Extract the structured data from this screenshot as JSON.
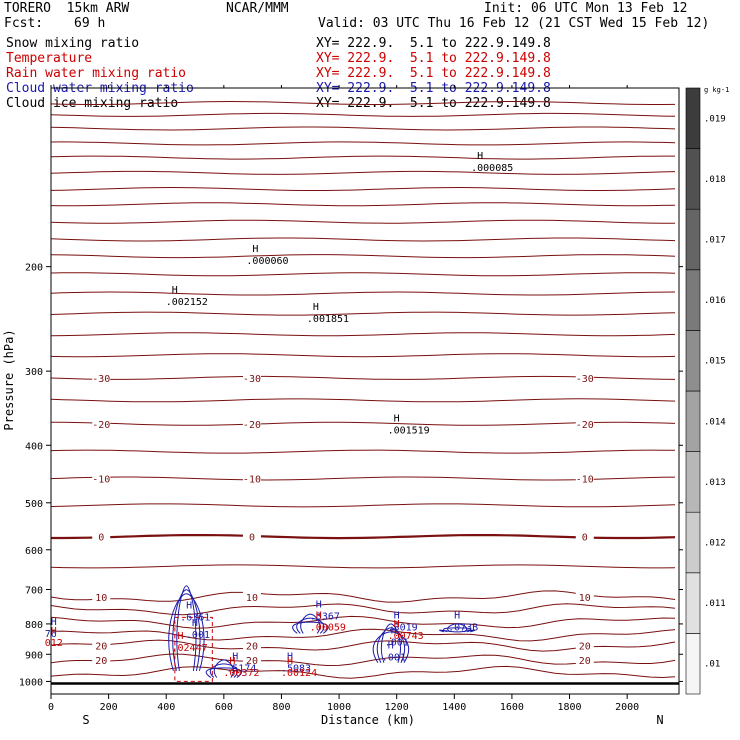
{
  "header": {
    "model": "TORERO  15km ARW",
    "org": "NCAR/MMM",
    "init": "Init: 06 UTC Mon 13 Feb 12",
    "fcst_label": "Fcst:",
    "fcst_value": "69 h",
    "valid": "Valid: 03 UTC Thu 16 Feb 12 (21 CST Wed 15 Feb 12)"
  },
  "legend": [
    {
      "name": "Snow mixing ratio",
      "xy": "",
      "color": "#000000"
    },
    {
      "name": "Temperature",
      "xy": "XY= 222.9.  5.1 to 222.9.149.8",
      "color": "#cc0000"
    },
    {
      "name": "Rain water mixing ratio",
      "xy": "XY= 222.9.  5.1 to 222.9.149.8",
      "color": "#cc0000"
    },
    {
      "name": "Cloud water mixing ratio",
      "xy": "XY= 222.9.  5.1 to 222.9.149.8",
      "color": "#1a1aaa"
    },
    {
      "name": "Cloud ice mixing ratio",
      "xy": "XY= 222.9.  5.1 to 222.9.149.8",
      "color": "#000000"
    }
  ],
  "legend_top_xy": "XY= 222.9.  5.1 to 222.9.149.8",
  "colors": {
    "temperature": "#7a1010",
    "rain": "#cc0000",
    "cloud_water": "#1a1aaa",
    "black": "#000000"
  },
  "chart_data": {
    "type": "contour",
    "xlabel": "Distance (km)",
    "ylabel": "Pressure (hPa)",
    "x_ticks": [
      0,
      200,
      400,
      600,
      800,
      1000,
      1200,
      1400,
      1600,
      1800,
      2000
    ],
    "y_ticks": [
      200,
      300,
      400,
      500,
      600,
      700,
      800,
      900,
      1000
    ],
    "xlim": [
      0,
      2180
    ],
    "ylim": [
      1050,
      100
    ],
    "y_scale": "log",
    "x_end_labels": {
      "left": "S",
      "right": "N"
    },
    "colorbar": {
      "units": "g kg-1",
      "ticks": [
        ".01",
        ".011",
        ".012",
        ".013",
        ".014",
        ".015",
        ".016",
        ".017",
        ".018",
        ".019"
      ]
    },
    "temperature_contours": [
      {
        "p": 965,
        "label": ""
      },
      {
        "p": 920,
        "label": "20"
      },
      {
        "p": 870,
        "label": "20"
      },
      {
        "p": 835,
        "label": ""
      },
      {
        "p": 795,
        "label": ""
      },
      {
        "p": 755,
        "label": ""
      },
      {
        "p": 720,
        "label": "10"
      },
      {
        "p": 640,
        "label": ""
      },
      {
        "p": 570,
        "label": "0"
      },
      {
        "p": 505,
        "label": ""
      },
      {
        "p": 455,
        "label": "-10"
      },
      {
        "p": 410,
        "label": ""
      },
      {
        "p": 368,
        "label": "-20"
      },
      {
        "p": 336,
        "label": ""
      },
      {
        "p": 308,
        "label": "-30"
      },
      {
        "p": 282,
        "label": ""
      },
      {
        "p": 260,
        "label": ""
      },
      {
        "p": 240,
        "label": ""
      },
      {
        "p": 222,
        "label": ""
      },
      {
        "p": 206,
        "label": ""
      },
      {
        "p": 192,
        "label": ""
      },
      {
        "p": 180,
        "label": ""
      },
      {
        "p": 168,
        "label": ""
      },
      {
        "p": 157,
        "label": ""
      },
      {
        "p": 148,
        "label": ""
      },
      {
        "p": 139,
        "label": ""
      },
      {
        "p": 131,
        "label": ""
      },
      {
        "p": 124,
        "label": ""
      },
      {
        "p": 117,
        "label": ""
      },
      {
        "p": 111,
        "label": ""
      },
      {
        "p": 106,
        "label": ""
      }
    ],
    "extrema": [
      {
        "x": 1500,
        "p": 138,
        "text": ".000085",
        "color": "#000000"
      },
      {
        "x": 720,
        "p": 198,
        "text": ".000060",
        "color": "#000000"
      },
      {
        "x": 440,
        "p": 232,
        "text": ".002152",
        "color": "#000000"
      },
      {
        "x": 930,
        "p": 248,
        "text": ".001851",
        "color": "#000000"
      },
      {
        "x": 1210,
        "p": 382,
        "text": ".001519",
        "color": "#000000"
      },
      {
        "x": 1210,
        "p": 820,
        "text": ".3019",
        "color": "#1a1aaa"
      },
      {
        "x": 1420,
        "p": 820,
        "text": ".073B",
        "color": "#1a1aaa"
      },
      {
        "x": 940,
        "p": 786,
        "text": ".3367",
        "color": "#1a1aaa"
      },
      {
        "x": 940,
        "p": 820,
        "text": ".00059",
        "color": "#cc0000"
      },
      {
        "x": 1210,
        "p": 848,
        "text": ".00743",
        "color": "#cc0000"
      },
      {
        "x": 490,
        "p": 790,
        "text": ".6361",
        "color": "#1a1aaa"
      },
      {
        "x": 510,
        "p": 845,
        "text": ".001",
        "color": "#1a1aaa"
      },
      {
        "x": 1200,
        "p": 870,
        "text": ".001",
        "color": "#1a1aaa"
      },
      {
        "x": 1190,
        "p": 922,
        "text": ".001",
        "color": "#1a1aaa"
      },
      {
        "x": 460,
        "p": 888,
        "text": ".02447",
        "color": "#cc0000"
      },
      {
        "x": 650,
        "p": 962,
        "text": ".5174",
        "color": "#1a1aaa"
      },
      {
        "x": 840,
        "p": 962,
        "text": ".5083",
        "color": "#1a1aaa"
      },
      {
        "x": 640,
        "p": 980,
        "text": ".00372",
        "color": "#cc0000"
      },
      {
        "x": 840,
        "p": 980,
        "text": ".00124",
        "color": "#cc0000"
      },
      {
        "x": 20,
        "p": 842,
        "text": "76",
        "color": "#1a1aaa"
      },
      {
        "x": 20,
        "p": 872,
        "text": "012",
        "color": "#cc0000"
      }
    ],
    "cloud_water_regions": [
      {
        "x": 470,
        "p0": 690,
        "p1": 960
      },
      {
        "x": 600,
        "p0": 920,
        "p1": 985
      },
      {
        "x": 900,
        "p0": 770,
        "p1": 830
      },
      {
        "x": 1180,
        "p0": 800,
        "p1": 930
      },
      {
        "x": 1410,
        "p0": 800,
        "p1": 825
      }
    ],
    "rain_regions": [
      {
        "x0": 430,
        "x1": 560,
        "p0": 780,
        "p1": 1000
      }
    ]
  }
}
